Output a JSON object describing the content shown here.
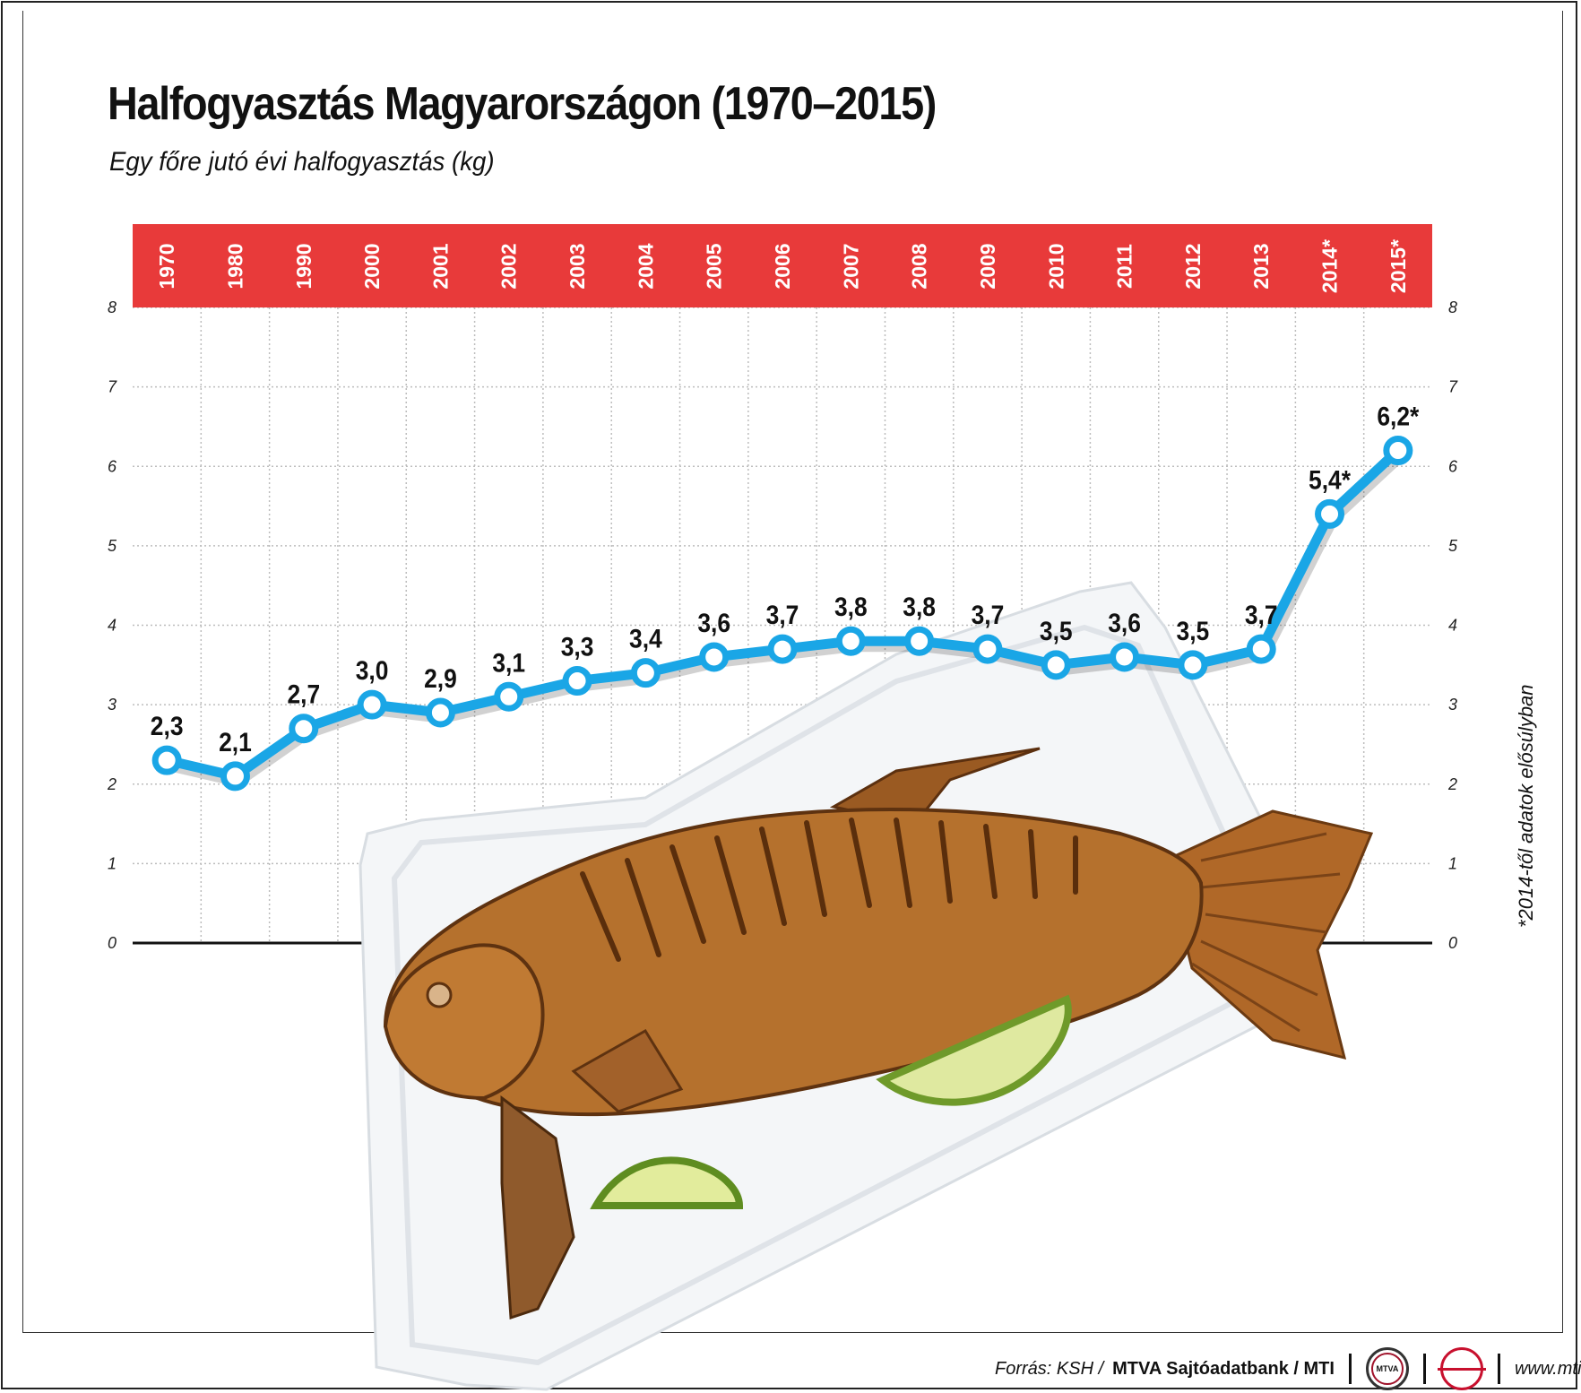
{
  "title": "Halfogyasztás Magyarországon (1970–2015)",
  "subtitle": "Egy főre jutó évi halfogyasztás (kg)",
  "footnote": "*2014-től adatok elősúlyban",
  "footer": {
    "source_prefix": "Forrás: KSH / ",
    "source_bold": "MTVA Sajtóadatbank / MTI",
    "logo1": "MTVA",
    "logo2": "",
    "url": "www.mti.hu"
  },
  "colors": {
    "header_band": "#e83a3a",
    "line": "#1aa6e6",
    "marker_fill": "#ffffff",
    "grid": "#bdbdbd"
  },
  "chart_data": {
    "type": "line",
    "title": "Halfogyasztás Magyarországon (1970–2015)",
    "subtitle": "Egy főre jutó évi halfogyasztás (kg)",
    "categories": [
      "1970",
      "1980",
      "1990",
      "2000",
      "2001",
      "2002",
      "2003",
      "2004",
      "2005",
      "2006",
      "2007",
      "2008",
      "2009",
      "2010",
      "2011",
      "2012",
      "2013",
      "2014*",
      "2015*"
    ],
    "values": [
      2.3,
      2.1,
      2.7,
      3.0,
      2.9,
      3.1,
      3.3,
      3.4,
      3.6,
      3.7,
      3.8,
      3.8,
      3.7,
      3.5,
      3.6,
      3.5,
      3.7,
      5.4,
      6.2
    ],
    "labels": [
      "2,3",
      "2,1",
      "2,7",
      "3,0",
      "2,9",
      "3,1",
      "3,3",
      "3,4",
      "3,6",
      "3,7",
      "3,8",
      "3,8",
      "3,7",
      "3,5",
      "3,6",
      "3,5",
      "3,7",
      "5,4*",
      "6,2*"
    ],
    "ylim": [
      0,
      8
    ],
    "yticks": [
      "0",
      "1",
      "2",
      "3",
      "4",
      "5",
      "6",
      "7",
      "8"
    ],
    "grid": true,
    "category_axis_position": "top",
    "y_axis": "both sides"
  },
  "illustration": "fried-fish-on-paper-plate"
}
